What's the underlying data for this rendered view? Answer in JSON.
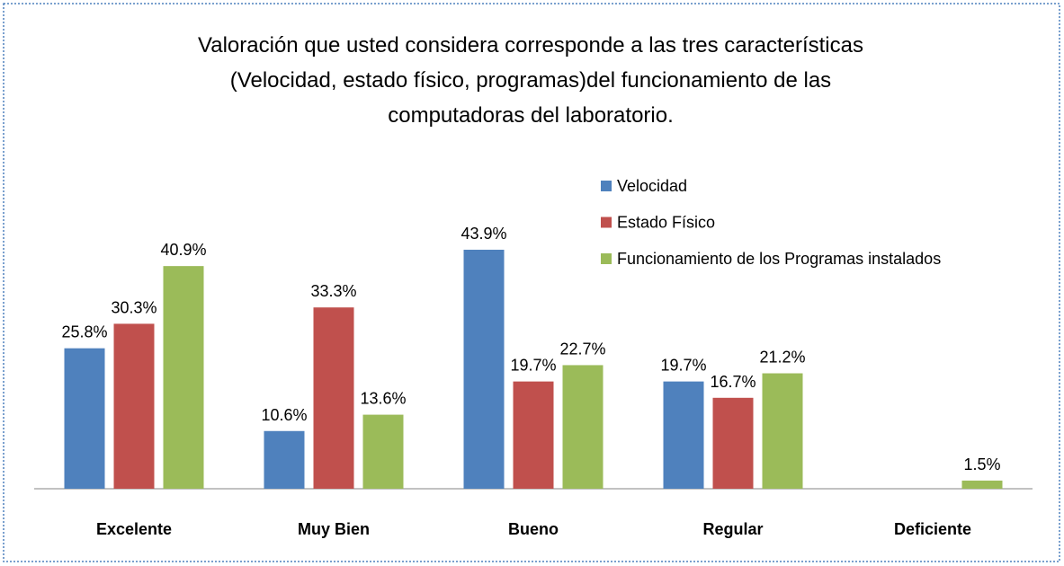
{
  "chart_data": {
    "type": "bar",
    "title": [
      "Valoración que usted considera corresponde a las tres características",
      "(Velocidad, estado físico, programas)del funcionamiento de las",
      "computadoras del laboratorio."
    ],
    "categories": [
      "Excelente",
      "Muy Bien",
      "Bueno",
      "Regular",
      "Deficiente"
    ],
    "series": [
      {
        "name": "Velocidad",
        "color": "#4f81bd",
        "values": [
          25.8,
          10.6,
          43.9,
          19.7,
          null
        ],
        "value_labels": [
          "25.8%",
          "10.6%",
          "43.9%",
          "19.7%",
          null
        ]
      },
      {
        "name": "Estado Físico",
        "color": "#c0504d",
        "values": [
          30.3,
          33.3,
          19.7,
          16.7,
          null
        ],
        "value_labels": [
          "30.3%",
          "33.3%",
          "19.7%",
          "16.7%",
          null
        ]
      },
      {
        "name": "Funcionamiento de los Programas instalados",
        "color": "#9bbb59",
        "values": [
          40.9,
          13.6,
          22.7,
          21.2,
          1.5
        ],
        "value_labels": [
          "40.9%",
          "13.6%",
          "22.7%",
          "21.2%",
          "1.5%"
        ]
      }
    ],
    "legend": "right"
  }
}
